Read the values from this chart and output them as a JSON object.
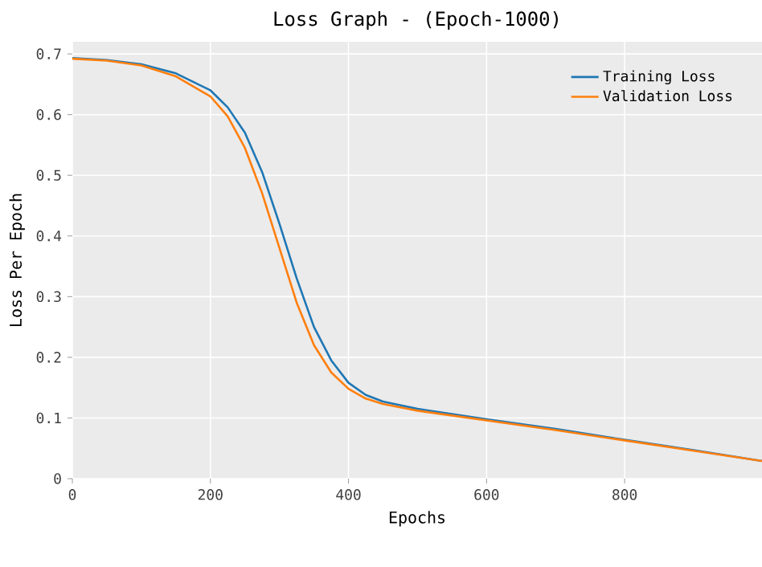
{
  "chart_data": {
    "type": "line",
    "title": "Loss Graph - (Epoch-1000)",
    "xlabel": "Epochs",
    "ylabel": "Loss Per Epoch",
    "xlim": [
      0,
      999
    ],
    "ylim": [
      0,
      0.72
    ],
    "xticks": [
      0,
      200,
      400,
      600,
      800
    ],
    "yticks": [
      0,
      0.1,
      0.2,
      0.3,
      0.4,
      0.5,
      0.6,
      0.7
    ],
    "grid": true,
    "legend": "top right",
    "marker": "none",
    "line_style": "solid",
    "series": [
      {
        "name": "Training Loss",
        "color": "#1f77b4",
        "x": [
          0,
          50,
          100,
          150,
          200,
          225,
          250,
          275,
          300,
          325,
          350,
          375,
          400,
          425,
          450,
          500,
          600,
          700,
          800,
          900,
          999
        ],
        "values": [
          0.693,
          0.69,
          0.683,
          0.668,
          0.64,
          0.612,
          0.57,
          0.505,
          0.42,
          0.33,
          0.25,
          0.195,
          0.158,
          0.138,
          0.127,
          0.115,
          0.098,
          0.082,
          0.064,
          0.047,
          0.029
        ]
      },
      {
        "name": "Validation Loss",
        "color": "#ff7f0e",
        "x": [
          0,
          50,
          100,
          150,
          200,
          225,
          250,
          275,
          300,
          325,
          350,
          375,
          400,
          425,
          450,
          500,
          600,
          700,
          800,
          900,
          999
        ],
        "values": [
          0.692,
          0.689,
          0.681,
          0.663,
          0.63,
          0.597,
          0.545,
          0.47,
          0.38,
          0.29,
          0.22,
          0.175,
          0.148,
          0.132,
          0.123,
          0.112,
          0.096,
          0.08,
          0.063,
          0.046,
          0.029
        ]
      }
    ]
  }
}
